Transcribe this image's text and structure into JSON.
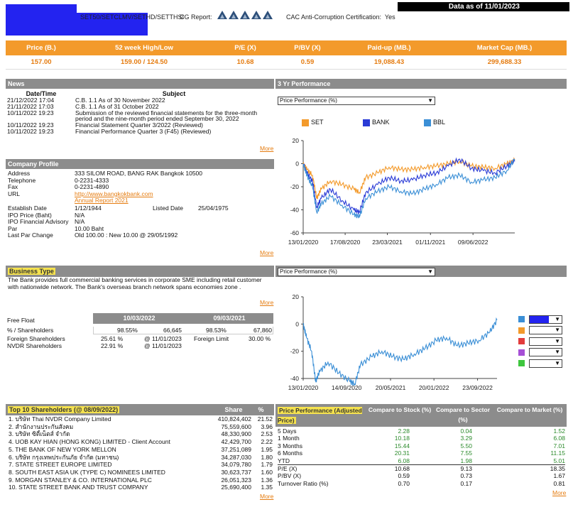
{
  "header": {
    "indices": "SET50/SETCLMV/SETHD/SETTHSI",
    "cg_label": "CG Report:",
    "cac_label": "CAC Anti-Corruption Certification:",
    "cac_value": "Yes",
    "data_as_of": "Data as of 11/01/2023"
  },
  "summary": {
    "headers": [
      "Price (B.)",
      "52 week High/Low",
      "P/E (X)",
      "P/BV (X)",
      "Paid-up (MB.)",
      "Market Cap (MB.)"
    ],
    "values": [
      "157.00",
      "159.00 / 124.50",
      "10.68",
      "0.59",
      "19,088.43",
      "299,688.33"
    ]
  },
  "news": {
    "title": "News",
    "col_date": "Date/Time",
    "col_subject": "Subject",
    "rows": [
      {
        "date": "21/12/2022 17:04",
        "subject": "C.B. 1.1 As of 30 November 2022"
      },
      {
        "date": "21/11/2022 17:03",
        "subject": "C.B. 1.1 As of 31 October 2022"
      },
      {
        "date": "10/11/2022 19:23",
        "subject": "Submission of the reviewed financial statements for the three-month period and the nine-month period ended September 30, 2022"
      },
      {
        "date": "10/11/2022 19:23",
        "subject": "Financial Statement Quarter 3/2022 (Reviewed)"
      },
      {
        "date": "10/11/2022 19:23",
        "subject": "Financial Performance Quarter 3 (F45) (Reviewed)"
      }
    ],
    "more": "More"
  },
  "company": {
    "title": "Company Profile",
    "address_label": "Address",
    "address": "333 SILOM ROAD, BANG RAK Bangkok  10500",
    "telephone_label": "Telephone",
    "telephone": "0-2231-4333",
    "fax_label": "Fax",
    "fax": "0-2231-4890",
    "url_label": "URL",
    "url": "http://www.bangkokbank.com",
    "annual_report": "Annual Report 2021",
    "establish_label": "Establish Date",
    "establish": "1/12/1944",
    "listed_label": "Listed Date",
    "listed": "25/04/1975",
    "ipo_price_label": "IPO Price (Baht)",
    "ipo_price": "N/A",
    "ipo_fa_label": "IPO Financial Advisory",
    "ipo_fa": "N/A",
    "par_label": "Par",
    "par": "10.00  Baht",
    "last_par_label": "Last Par Change",
    "last_par": "Old 100.00 : New 10.00 @ 29/05/1992",
    "more": "More"
  },
  "business": {
    "title": "Business Type",
    "text": "The Bank provides full commercial banking services in corporate SME including retail customer with nationwide network. The Bank's overseas branch network spans economies zone .",
    "more": "More"
  },
  "free_float": {
    "label": "Free Float",
    "date1": "10/03/2022",
    "date2": "09/03/2021",
    "shareholders_label": "% / Shareholders",
    "pct1": "98.55%",
    "sh1": "66,645",
    "pct2": "98.53%",
    "sh2": "67,860",
    "foreign_label": "Foreign Shareholders",
    "foreign_val": "25.61 %",
    "foreign_date": "@ 11/01/2023",
    "foreign_limit_label": "Foreign Limit",
    "foreign_limit": "30.00 %",
    "nvdr_label": "NVDR Shareholders",
    "nvdr_val": "22.91 %",
    "nvdr_date": "@ 11/01/2023"
  },
  "top10": {
    "title": "Top 10 Shareholders (@ 08/09/2022)",
    "col_share": "Share",
    "col_pct": "%",
    "rows": [
      {
        "name": "1.  บริษัท Thai NVDR Company Limited",
        "share": "410,824,402",
        "pct": "21.52"
      },
      {
        "name": "2.  สำนักงานประกันสังคม",
        "share": "75,559,600",
        "pct": "3.96"
      },
      {
        "name": "3.  บริษัท ซิตี้เน็ตส์ จำกัด",
        "share": "48,330,900",
        "pct": "2.53"
      },
      {
        "name": "4.  UOB KAY HIAN (HONG KONG) LIMITED - Client Account",
        "share": "42,429,700",
        "pct": "2.22"
      },
      {
        "name": "5.  THE BANK OF NEW YORK MELLON",
        "share": "37,251,089",
        "pct": "1.95"
      },
      {
        "name": "6.  บริษัท กรุงเทพประกันภัย จำกัด (มหาชน)",
        "share": "34,287,030",
        "pct": "1.80"
      },
      {
        "name": "7.  STATE STREET EUROPE LIMITED",
        "share": "34,079,780",
        "pct": "1.79"
      },
      {
        "name": "8.  SOUTH EAST ASIA UK (TYPE C) NOMINEES LIMITED",
        "share": "30,623,737",
        "pct": "1.60"
      },
      {
        "name": "9.  MORGAN STANLEY & CO. INTERNATIONAL PLC",
        "share": "26,051,323",
        "pct": "1.36"
      },
      {
        "name": "10.  STATE STREET BANK AND TRUST COMPANY",
        "share": "25,690,400",
        "pct": "1.35"
      }
    ],
    "more": "More"
  },
  "perf3yr": {
    "title": "3 Yr Performance",
    "select": "Price Performance (%)",
    "legend": [
      "SET",
      "BANK",
      "BBL"
    ],
    "colors": {
      "SET": "#f39a2b",
      "BANK": "#2a3bd6",
      "BBL": "#3b8fd6"
    }
  },
  "perf2": {
    "select": "Price Performance (%)",
    "swatch_colors": [
      "#3b8fd6",
      "#f39a2b",
      "#e23c3c",
      "#a64fd6",
      "#3ec63e"
    ]
  },
  "price_perf": {
    "title": "Price Performance (Adjusted Price)",
    "cols": [
      "Compare to Stock (%)",
      "Compare to Sector (%)",
      "Compare to Market (%)"
    ],
    "rows": [
      {
        "label": "5 Days",
        "v": [
          "2.28",
          "0.04",
          "1.52"
        ]
      },
      {
        "label": "1 Month",
        "v": [
          "10.18",
          "3.29",
          "6.08"
        ]
      },
      {
        "label": "3 Months",
        "v": [
          "15.44",
          "5.50",
          "7.01"
        ]
      },
      {
        "label": "6 Months",
        "v": [
          "20.31",
          "7.55",
          "11.15"
        ]
      },
      {
        "label": "YTD",
        "v": [
          "6.08",
          "1.98",
          "5.01"
        ]
      }
    ],
    "ratios": [
      {
        "label": "P/E (X)",
        "v": [
          "10.68",
          "9.13",
          "18.35"
        ]
      },
      {
        "label": "P/BV (X)",
        "v": [
          "0.59",
          "0.73",
          "1.67"
        ]
      },
      {
        "label": "Turnover Ratio (%)",
        "v": [
          "0.70",
          "0.17",
          "0.81"
        ]
      }
    ],
    "more": "More"
  },
  "chart_data": [
    {
      "type": "line",
      "title": "3 Yr Performance",
      "x_tick_labels": [
        "13/01/2020",
        "17/08/2020",
        "23/03/2021",
        "01/11/2021",
        "09/06/2022"
      ],
      "x_range": [
        "13/01/2020",
        "11/01/2023"
      ],
      "ylim": [
        -60,
        20
      ],
      "yticks": [
        20,
        0,
        -20,
        -40,
        -60
      ],
      "grid": false,
      "legend_position": "top",
      "series": [
        {
          "name": "SET",
          "x": [
            "13/01/2020",
            "01/02/2020",
            "01/03/2020",
            "23/03/2020",
            "15/04/2020",
            "01/06/2020",
            "01/08/2020",
            "01/10/2020",
            "30/10/2020",
            "01/12/2020",
            "01/02/2021",
            "01/04/2021",
            "01/06/2021",
            "01/08/2021",
            "01/10/2021",
            "01/12/2021",
            "01/02/2022",
            "01/04/2022",
            "01/06/2022",
            "01/08/2022",
            "01/10/2022",
            "01/12/2022",
            "11/01/2023"
          ],
          "values": [
            0,
            -5,
            -10,
            -30,
            -22,
            -15,
            -18,
            -22,
            -25,
            -12,
            -8,
            -3,
            -5,
            -5,
            -3,
            -2,
            0,
            2,
            -2,
            -3,
            -4,
            0,
            3
          ]
        },
        {
          "name": "BANK",
          "x": [
            "13/01/2020",
            "01/02/2020",
            "01/03/2020",
            "23/03/2020",
            "15/04/2020",
            "01/06/2020",
            "01/08/2020",
            "01/10/2020",
            "30/10/2020",
            "01/12/2020",
            "01/02/2021",
            "01/04/2021",
            "01/06/2021",
            "01/08/2021",
            "01/10/2021",
            "01/12/2021",
            "01/02/2022",
            "01/04/2022",
            "01/06/2022",
            "01/08/2022",
            "01/10/2022",
            "01/12/2022",
            "11/01/2023"
          ],
          "values": [
            0,
            -8,
            -15,
            -38,
            -30,
            -22,
            -32,
            -40,
            -42,
            -25,
            -18,
            -12,
            -15,
            -14,
            -10,
            -8,
            -2,
            4,
            -4,
            -6,
            -8,
            -2,
            2
          ]
        },
        {
          "name": "BBL",
          "x": [
            "13/01/2020",
            "01/02/2020",
            "01/03/2020",
            "23/03/2020",
            "15/04/2020",
            "01/06/2020",
            "01/08/2020",
            "01/10/2020",
            "30/10/2020",
            "01/12/2020",
            "01/02/2021",
            "01/04/2021",
            "01/06/2021",
            "01/08/2021",
            "01/10/2021",
            "01/12/2021",
            "01/02/2022",
            "01/04/2022",
            "01/06/2022",
            "01/08/2022",
            "01/10/2022",
            "01/12/2022",
            "11/01/2023"
          ],
          "values": [
            0,
            -10,
            -20,
            -42,
            -35,
            -28,
            -36,
            -44,
            -46,
            -30,
            -24,
            -20,
            -24,
            -26,
            -22,
            -18,
            -12,
            -10,
            -16,
            -14,
            -12,
            -6,
            4
          ]
        }
      ]
    },
    {
      "type": "line",
      "x_tick_labels": [
        "13/01/2020",
        "14/09/2020",
        "20/05/2021",
        "20/01/2022",
        "23/09/2022"
      ],
      "x_range": [
        "13/01/2020",
        "11/01/2023"
      ],
      "ylim": [
        -40,
        20
      ],
      "yticks": [
        20,
        0,
        -20,
        -40
      ],
      "grid": false,
      "series": [
        {
          "x": [
            "13/01/2020",
            "01/02/2020",
            "01/03/2020",
            "23/03/2020",
            "15/04/2020",
            "01/06/2020",
            "01/08/2020",
            "01/10/2020",
            "30/10/2020",
            "01/12/2020",
            "01/02/2021",
            "01/04/2021",
            "01/06/2021",
            "01/08/2021",
            "01/10/2021",
            "01/12/2021",
            "01/02/2022",
            "01/04/2022",
            "01/06/2022",
            "01/08/2022",
            "01/10/2022",
            "01/12/2022",
            "11/01/2023"
          ],
          "values": [
            0,
            -10,
            -20,
            -42,
            -35,
            -28,
            -36,
            -42,
            -44,
            -30,
            -24,
            -20,
            -24,
            -26,
            -22,
            -18,
            -12,
            -10,
            -16,
            -14,
            -12,
            -6,
            3
          ]
        }
      ]
    }
  ]
}
